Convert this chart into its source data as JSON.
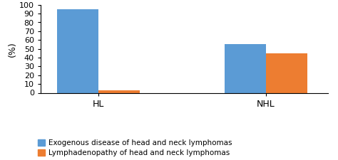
{
  "categories": [
    "HL",
    "NHL"
  ],
  "series": [
    {
      "label": "Exogenous disease of head and neck lymphomas",
      "values": [
        95,
        55
      ],
      "color": "#5B9BD5"
    },
    {
      "label": "Lymphadenopathy of head and neck lymphomas",
      "values": [
        3,
        45
      ],
      "color": "#ED7D31"
    }
  ],
  "ylabel": "(%)",
  "ylim": [
    0,
    100
  ],
  "yticks": [
    0,
    10,
    20,
    30,
    40,
    50,
    60,
    70,
    80,
    90,
    100
  ],
  "bar_width": 0.32,
  "background_color": "#ffffff",
  "legend_fontsize": 7.5,
  "axis_fontsize": 9,
  "tick_fontsize": 8,
  "group_positions": [
    0.0,
    1.3
  ]
}
